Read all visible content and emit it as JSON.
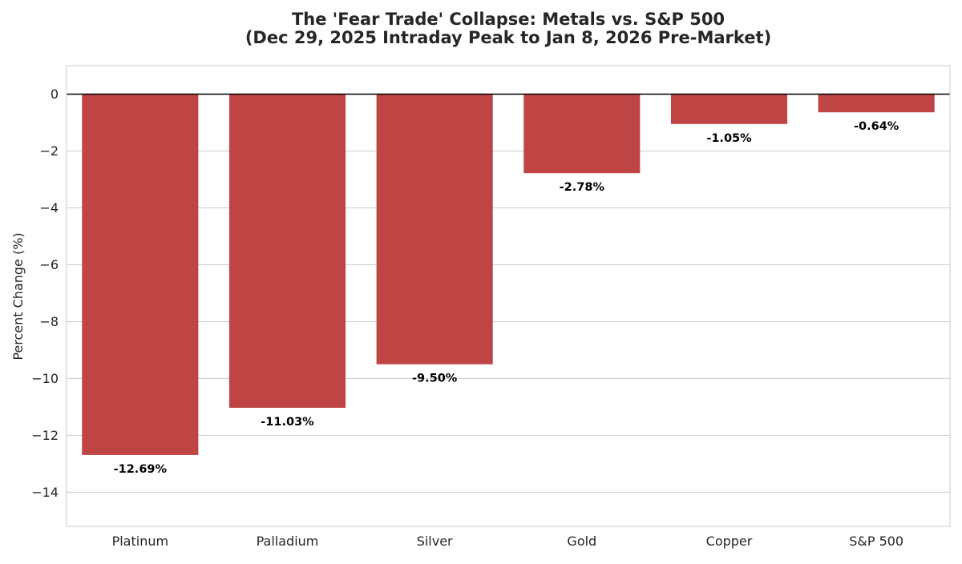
{
  "chart_data": {
    "type": "bar",
    "title_line1": "The 'Fear Trade' Collapse: Metals vs. S&P 500",
    "title_line2": "(Dec 29, 2025 Intraday Peak to Jan 8, 2026 Pre-Market)",
    "xlabel": "",
    "ylabel": "Percent Change (%)",
    "categories": [
      "Platinum",
      "Palladium",
      "Silver",
      "Gold",
      "Copper",
      "S&P 500"
    ],
    "values": [
      -12.69,
      -11.03,
      -9.5,
      -2.78,
      -1.05,
      -0.64
    ],
    "data_labels": [
      "-12.69%",
      "-11.03%",
      "-9.50%",
      "-2.78%",
      "-1.05%",
      "-0.64%"
    ],
    "ylim": [
      -15.2,
      1.0
    ],
    "yticks": [
      0,
      -2,
      -4,
      -6,
      -8,
      -10,
      -12,
      -14
    ],
    "ytick_labels": [
      "0",
      "−2",
      "−4",
      "−6",
      "−8",
      "−10",
      "−12",
      "−14"
    ],
    "grid": true,
    "legend": "none",
    "bar_color": "#bf4444",
    "zero_line_color": "#000000",
    "grid_color": "#cccccc"
  }
}
